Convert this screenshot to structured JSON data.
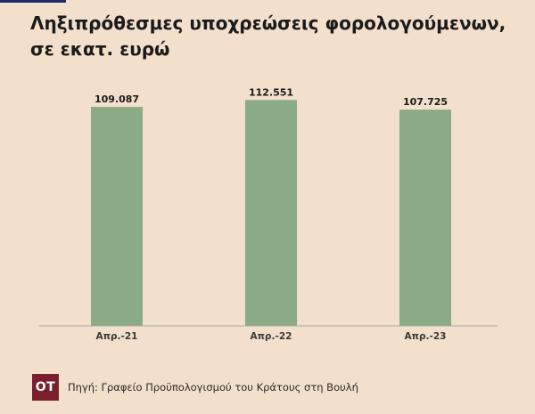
{
  "chart_data": {
    "type": "bar",
    "title_lines": [
      "Ληξιπρόθεσμες υποχρεώσεις φορολογούμενων,",
      "σε εκατ. ευρώ"
    ],
    "categories": [
      "Απρ.-21",
      "Απρ.-22",
      "Απρ.-23"
    ],
    "values": [
      109087,
      112551,
      107725
    ],
    "value_labels": [
      "109.087",
      "112.551",
      "107.725"
    ],
    "ylim": [
      0,
      118000
    ],
    "grid": false,
    "legend": "none",
    "bar_color": "#8aab84"
  },
  "footer": {
    "logo_text": "OT",
    "source": "Πηγή:  Γραφείο Προϋπολογισμού του Κράτους στη Βουλή"
  },
  "colors": {
    "background": "#f2dfcc",
    "accent": "#1d2a6e",
    "logo_bg": "#7a1f2e"
  }
}
